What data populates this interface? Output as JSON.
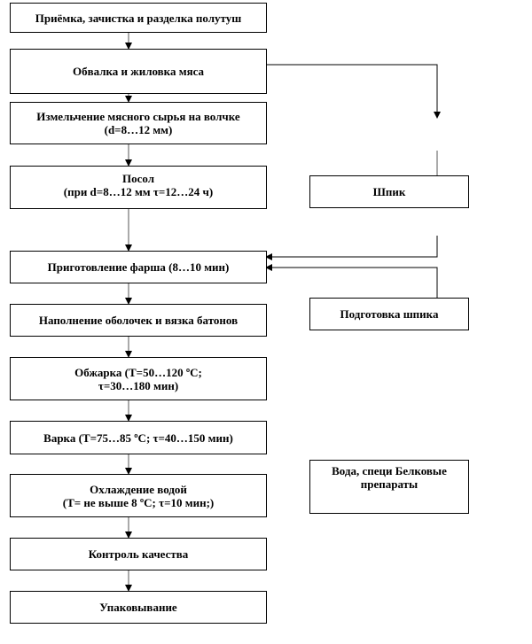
{
  "steps": [
    "Приёмка, зачистка и разделка полутуш",
    "Обвалка и жиловка мяса",
    "Измельчение мясного сырья на волчке\n(d=8…12 мм)",
    "Посол\n(при d=8…12 мм τ=12…24 ч)",
    "Приготовление фарша  (8…10 мин)",
    "Наполнение оболочек и вязка батонов",
    "Обжарка (T=50…120 ºС;\nτ=30…180 мин)",
    "Варка  (T=75…85 ºС; τ=40…150 мин)",
    "Охлаждение водой\n(T= не выше 8 ºС; τ=10 мин;)",
    "Контроль качества",
    "Упаковывание"
  ],
  "side": {
    "fat": "Шпик",
    "fat_prep": "Подготовка шпика",
    "additives": "Вода, специ Белковые препараты"
  }
}
